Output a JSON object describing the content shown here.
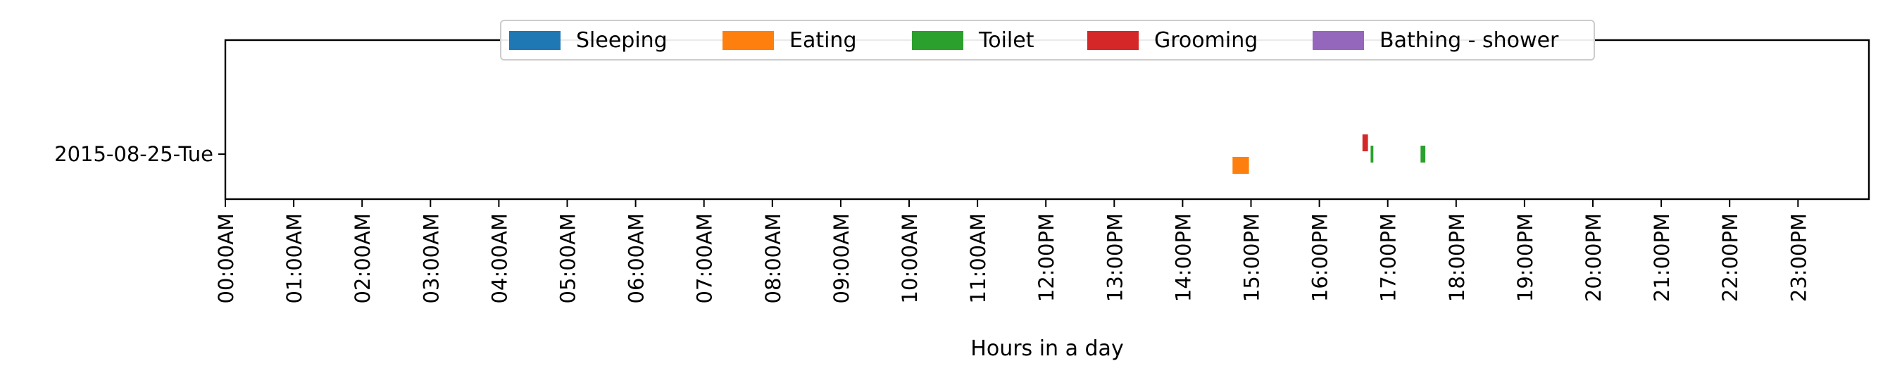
{
  "chart_data": {
    "type": "timeline",
    "xlabel": "Hours in a day",
    "ylabel": "",
    "xlim": [
      0,
      24
    ],
    "x_tick_labels": [
      "00:00AM",
      "01:00AM",
      "02:00AM",
      "03:00AM",
      "04:00AM",
      "05:00AM",
      "06:00AM",
      "07:00AM",
      "08:00AM",
      "09:00AM",
      "10:00AM",
      "11:00AM",
      "12:00PM",
      "13:00PM",
      "14:00PM",
      "15:00PM",
      "16:00PM",
      "17:00PM",
      "18:00PM",
      "19:00PM",
      "20:00PM",
      "21:00PM",
      "22:00PM",
      "23:00PM"
    ],
    "y_categories": [
      "2015-08-25-Tue"
    ],
    "grid": false,
    "legend_position": "top-center",
    "legend": [
      {
        "name": "Sleeping",
        "color": "#1f77b4"
      },
      {
        "name": "Eating",
        "color": "#ff7f0e"
      },
      {
        "name": "Toilet",
        "color": "#2ca02c"
      },
      {
        "name": "Grooming",
        "color": "#d62728"
      },
      {
        "name": "Bathing - shower",
        "color": "#9467bd"
      }
    ],
    "series": [
      {
        "name": "Sleeping",
        "color": "#1f77b4",
        "intervals": []
      },
      {
        "name": "Eating",
        "color": "#ff7f0e",
        "intervals": [
          {
            "day": "2015-08-25-Tue",
            "start": 14.73,
            "end": 14.97
          }
        ]
      },
      {
        "name": "Toilet",
        "color": "#2ca02c",
        "intervals": [
          {
            "day": "2015-08-25-Tue",
            "start": 16.75,
            "end": 16.79
          },
          {
            "day": "2015-08-25-Tue",
            "start": 17.48,
            "end": 17.55
          }
        ]
      },
      {
        "name": "Grooming",
        "color": "#d62728",
        "intervals": [
          {
            "day": "2015-08-25-Tue",
            "start": 16.63,
            "end": 16.71
          }
        ]
      },
      {
        "name": "Bathing - shower",
        "color": "#9467bd",
        "intervals": []
      }
    ]
  }
}
